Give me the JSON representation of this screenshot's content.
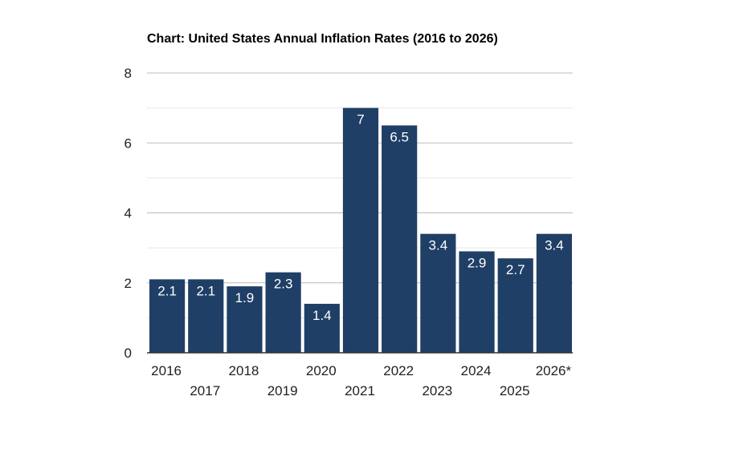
{
  "chart_data": {
    "type": "bar",
    "title": "Chart: United States Annual Inflation Rates (2016 to 2026)",
    "xlabel": "",
    "ylabel": "",
    "categories": [
      "2016",
      "2017",
      "2018",
      "2019",
      "2020",
      "2021",
      "2022",
      "2023",
      "2024",
      "2025",
      "2026*"
    ],
    "values": [
      2.1,
      2.1,
      1.9,
      2.3,
      1.4,
      7,
      6.5,
      3.4,
      2.9,
      2.7,
      3.4
    ],
    "data_labels": [
      "2.1",
      "2.1",
      "1.9",
      "2.3",
      "1.4",
      "7",
      "6.5",
      "3.4",
      "2.9",
      "2.7",
      "3.4"
    ],
    "ylim": [
      0,
      8
    ],
    "yticks": [
      0,
      2,
      4,
      6,
      8
    ],
    "ytick_labels": [
      "0",
      "2",
      "4",
      "6",
      "8"
    ],
    "grid": true,
    "legend": "none",
    "colors": {
      "bar": "#1f3f66",
      "grid": "#cccccc",
      "axis": "#333333"
    }
  }
}
